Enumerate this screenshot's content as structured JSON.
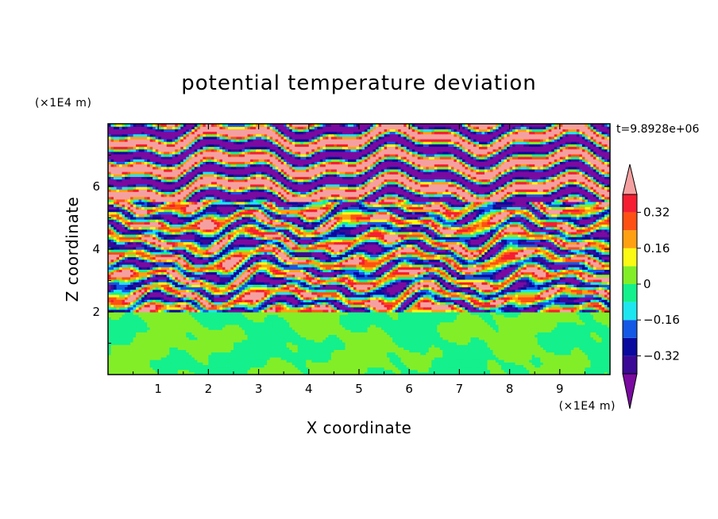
{
  "chart_data": {
    "type": "heatmap",
    "title": "potential temperature deviation",
    "xlabel": "X coordinate",
    "ylabel": "Z coordinate",
    "x_units": "(×1E4 m)",
    "y_units": "(×1E4 m)",
    "time_label": "t=9.8928e+06",
    "xlim": [
      0,
      10
    ],
    "ylim": [
      0,
      8
    ],
    "x_ticks": [
      1,
      2,
      3,
      4,
      5,
      6,
      7,
      8,
      9
    ],
    "x_tick_labels": [
      "1",
      "2",
      "3",
      "4",
      "5",
      "6",
      "7",
      "8",
      "9"
    ],
    "y_ticks": [
      2,
      4,
      6
    ],
    "y_tick_labels": [
      "2",
      "4",
      "6"
    ],
    "colorbar": {
      "levels": [
        -0.4,
        -0.32,
        -0.24,
        -0.16,
        -0.08,
        0,
        0.08,
        0.16,
        0.24,
        0.32,
        0.4
      ],
      "labeled_values": [
        0.32,
        0.16,
        0,
        -0.16,
        -0.32
      ],
      "labels": [
        "0.32",
        "0.16",
        "0",
        "−0.16",
        "−0.32"
      ],
      "colors": [
        "#7a0aa0",
        "#3a0a96",
        "#0a0a9e",
        "#1458e6",
        "#1ee6f0",
        "#14f08c",
        "#82ee28",
        "#fafa14",
        "#ffa012",
        "#ff5014",
        "#f51e32",
        "#f5a0a0"
      ],
      "extend": "both"
    },
    "layers": [
      {
        "z_range": [
          0,
          2
        ],
        "description_values": "mixed -0.08 to 0.08 (green / teal turbulent region)"
      },
      {
        "z_range": [
          2,
          5.5
        ],
        "description_values": "banded fluctuations spanning about -0.4 to 0.4"
      },
      {
        "z_range": [
          5.5,
          8
        ],
        "description_values": "alternating bands near -0.4 and 0.4"
      }
    ]
  }
}
